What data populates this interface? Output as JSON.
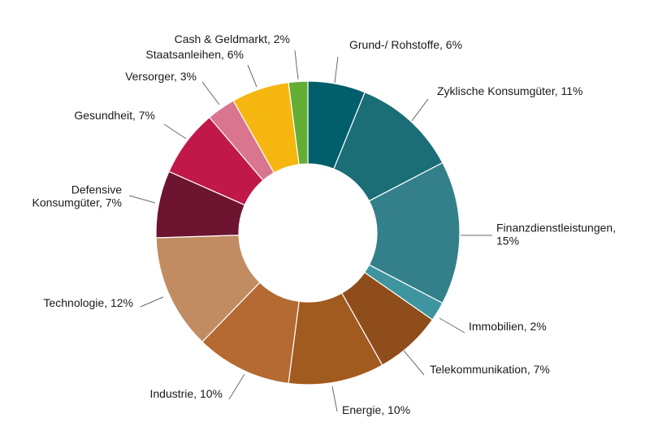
{
  "chart_data": {
    "type": "pie",
    "donut": true,
    "unit": "%",
    "slices": [
      {
        "label": "Grund-/ Rohstoffe, 6%",
        "name": "Grund-/ Rohstoffe",
        "value": 6,
        "color": "#005f6b"
      },
      {
        "label": "Zyklische Konsumgüter, 11%",
        "name": "Zyklische Konsumgüter",
        "value": 11,
        "color": "#1b6d76"
      },
      {
        "label": [
          "Finanzdienstleistungen,",
          "15%"
        ],
        "name": "Finanzdienstleistungen",
        "value": 15,
        "color": "#33808a"
      },
      {
        "label": "Immobilien, 2%",
        "name": "Immobilien",
        "value": 2,
        "color": "#3e959f"
      },
      {
        "label": "Telekommunikation, 7%",
        "name": "Telekommunikation",
        "value": 7,
        "color": "#8f4d1c"
      },
      {
        "label": "Energie, 10%",
        "name": "Energie",
        "value": 10,
        "color": "#a25b1f"
      },
      {
        "label": "Industrie, 10%",
        "name": "Industrie",
        "value": 10,
        "color": "#b46a32"
      },
      {
        "label": "Technologie, 12%",
        "name": "Technologie",
        "value": 12,
        "color": "#c18c62"
      },
      {
        "label": [
          "Defensive",
          "Konsumgüter, 7%"
        ],
        "name": "Defensive Konsumgüter",
        "value": 7,
        "color": "#6d1430"
      },
      {
        "label": "Gesundheit, 7%",
        "name": "Gesundheit",
        "value": 7,
        "color": "#c01848"
      },
      {
        "label": "Versorger, 3%",
        "name": "Versorger",
        "value": 3,
        "color": "#d9758f"
      },
      {
        "label": "Staatsanleihen, 6%",
        "name": "Staatsanleihen",
        "value": 6,
        "color": "#f5b70f"
      },
      {
        "label": "Cash & Geldmarkt, 2%",
        "name": "Cash & Geldmarkt",
        "value": 2,
        "color": "#63ad35"
      }
    ]
  }
}
